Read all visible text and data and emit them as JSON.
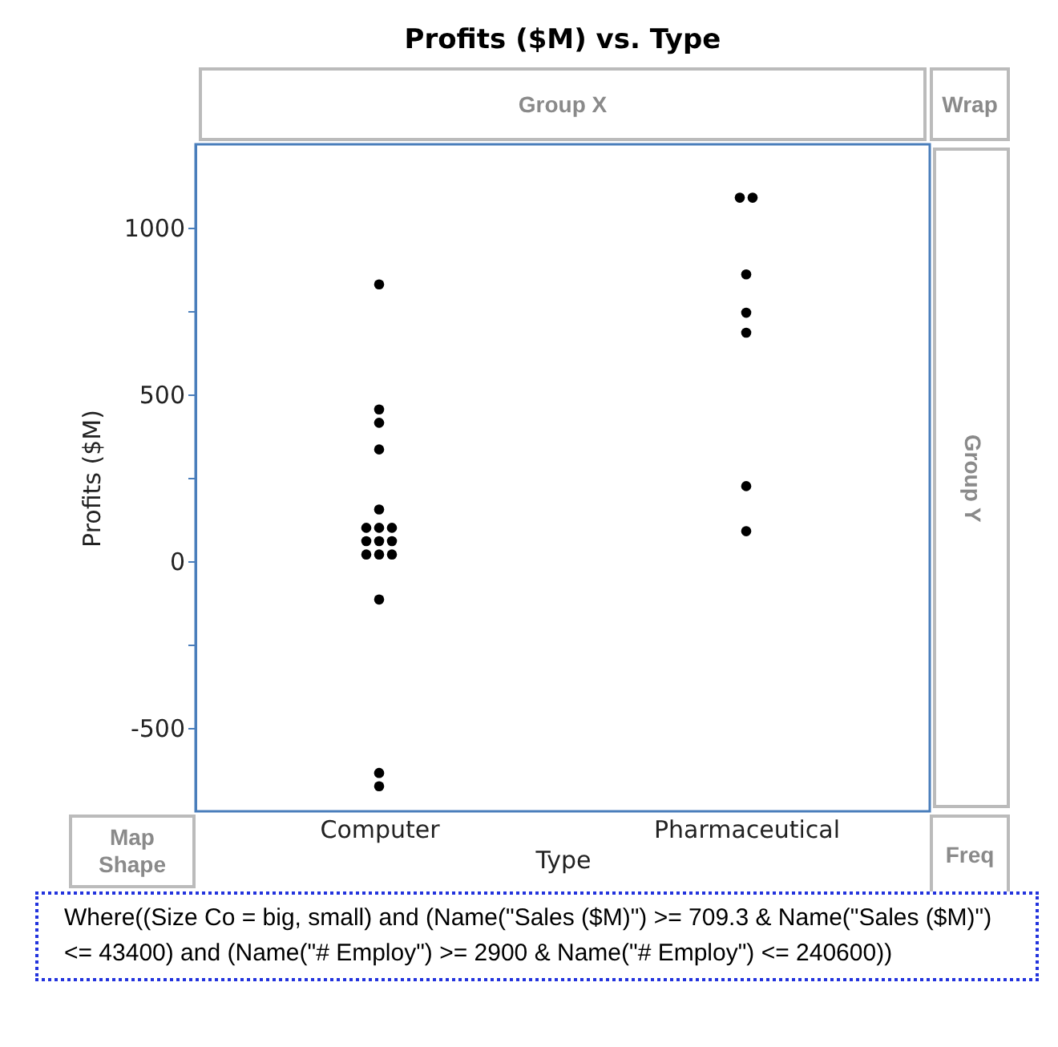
{
  "chart_data": {
    "type": "scatter",
    "title": "Profits ($M) vs. Type",
    "xlabel": "Type",
    "ylabel": "Profits ($M)",
    "categories": [
      "Computer",
      "Pharmaceutical"
    ],
    "series": [
      {
        "color": "#000000",
        "x": [
          "Computer",
          "Computer",
          "Computer",
          "Computer",
          "Computer",
          "Computer",
          "Computer",
          "Computer",
          "Computer",
          "Computer",
          "Computer",
          "Computer",
          "Computer",
          "Computer",
          "Computer",
          "Computer",
          "Computer",
          "Pharmaceutical",
          "Pharmaceutical",
          "Pharmaceutical",
          "Pharmaceutical",
          "Pharmaceutical",
          "Pharmaceutical",
          "Pharmaceutical"
        ],
        "values": [
          830,
          455,
          415,
          335,
          155,
          100,
          100,
          100,
          60,
          60,
          60,
          20,
          20,
          20,
          -115,
          -635,
          -675,
          1090,
          1090,
          860,
          745,
          685,
          225,
          90
        ]
      }
    ],
    "ylim": [
      -750,
      1250
    ],
    "yticks": [
      -500,
      {
        "value": -250,
        "label": null
      },
      0,
      {
        "value": 250,
        "label": null
      },
      500,
      {
        "value": 750,
        "label": null
      },
      1000
    ],
    "marker": "circle",
    "grid": false,
    "annotations": [
      "Group X",
      "Wrap",
      "Group Y",
      "Map\nShape",
      "Freq",
      "Where((Size Co = big, small) and (Name(\"Sales ($M)\") >= 709.3 & Name(\"Sales ($M)\") <= 43400) and (Name(\"# Employ\") >= 2900 & Name(\"# Employ\") <= 240600))"
    ]
  }
}
